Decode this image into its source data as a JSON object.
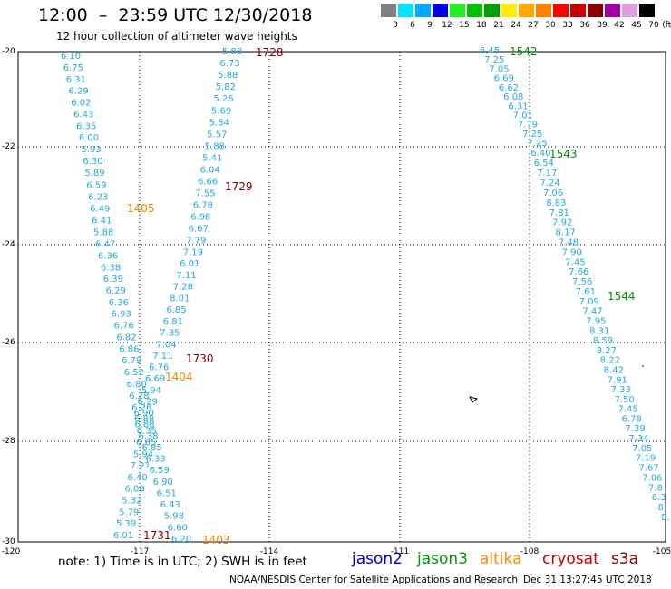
{
  "header": {
    "title": "12:00  –  23:59 UTC 12/30/2018",
    "subtitle": "12 hour collection of altimeter wave heights"
  },
  "scale": {
    "unit": "(ft)",
    "steps": [
      {
        "label": "3",
        "color": "#7f7f7f"
      },
      {
        "label": "6",
        "color": "#00e5ff"
      },
      {
        "label": "9",
        "color": "#00aaff"
      },
      {
        "label": "12",
        "color": "#0000ee"
      },
      {
        "label": "15",
        "color": "#22ee22"
      },
      {
        "label": "18",
        "color": "#00c000"
      },
      {
        "label": "21",
        "color": "#00a000"
      },
      {
        "label": "24",
        "color": "#ffee00"
      },
      {
        "label": "27",
        "color": "#ffa800"
      },
      {
        "label": "30",
        "color": "#ff7f00"
      },
      {
        "label": "33",
        "color": "#ff0000"
      },
      {
        "label": "36",
        "color": "#c80000"
      },
      {
        "label": "39",
        "color": "#8a0000"
      },
      {
        "label": "42",
        "color": "#a000a0"
      },
      {
        "label": "45",
        "color": "#e0a0e0"
      },
      {
        "label": "70",
        "color": "#000000"
      }
    ]
  },
  "axes": {
    "lat_labels": [
      "-20",
      "-22",
      "-24",
      "-26",
      "-28",
      "-30"
    ],
    "lon_labels": [
      "-120",
      "-117",
      "-114",
      "-111",
      "-108",
      "-105"
    ]
  },
  "track_colors": {
    "low": "#22aadd",
    "time_s3a": "#8b0000",
    "time_jason3": "#0a8a0a",
    "time_altika": "#ee8800"
  },
  "tracks": [
    {
      "id": "west",
      "values": [
        "6.10",
        "6.75",
        "6.31",
        "6.29",
        "6.02",
        "6.43",
        "6.35",
        "6.00",
        "5.93",
        "6.30",
        "5.89",
        "6.59",
        "6.23",
        "6.49",
        "6.41",
        "5.88",
        "6.47",
        "6.36",
        "6.38",
        "6.39",
        "6.29",
        "6.36",
        "6.93",
        "6.76",
        "6.82",
        "6.86",
        "6.79",
        "6.52",
        "6.80",
        "6.28",
        "6.26",
        "6.88",
        "6.35",
        "6.65",
        "5.94",
        "7.21",
        "6.40",
        "6.08",
        "5.32",
        "5.79",
        "5.39",
        "6.01"
      ]
    },
    {
      "id": "mid",
      "values": [
        "5.88",
        "6.73",
        "5.88",
        "5.82",
        "5.26",
        "5.69",
        "5.54",
        "5.57",
        "5.88",
        "5.41",
        "6.04",
        "6.66",
        "7.55",
        "6.78",
        "6.98",
        "6.67",
        "7.79",
        "7.19",
        "6.01",
        "7.11",
        "7.28",
        "8.01",
        "6.85",
        "6.81",
        "7.35",
        "7.04",
        "7.11",
        "6.76",
        "6.69",
        "5.94",
        "6.29",
        "6.90",
        "6.88",
        "6.38",
        "6.85",
        "6.33",
        "6.59",
        "6.90",
        "6.51",
        "6.43",
        "5.98",
        "6.60",
        "6.20"
      ]
    },
    {
      "id": "east",
      "values": [
        "6.45",
        "7.25",
        "7.05",
        "6.69",
        "6.62",
        "6.08",
        "6.31",
        "7.01",
        "7.79",
        "7.25",
        "7.25",
        "6.40",
        "6.54",
        "7.17",
        "7.24",
        "7.06",
        "8.83",
        "7.81",
        "7.92",
        "8.17",
        "7.48",
        "7.90",
        "7.45",
        "7.66",
        "7.56",
        "7.61",
        "7.09",
        "7.47",
        "7.95",
        "8.31",
        "8.59",
        "8.27",
        "8.22",
        "8.42",
        "7.91",
        "7.33",
        "7.50",
        "7.45",
        "6.78",
        "7.39",
        "7.34",
        "7.05",
        "7.19",
        "7.67",
        "7.06",
        "7.8",
        "6.3",
        "8.",
        "8."
      ]
    }
  ],
  "time_labels": [
    {
      "text": "1728",
      "sat": "cryosat"
    },
    {
      "text": "1729",
      "sat": "cryosat"
    },
    {
      "text": "1730",
      "sat": "cryosat"
    },
    {
      "text": "1731",
      "sat": "cryosat"
    },
    {
      "text": "1405",
      "sat": "altika"
    },
    {
      "text": "1404",
      "sat": "altika"
    },
    {
      "text": "1403",
      "sat": "altika"
    },
    {
      "text": "1542",
      "sat": "jason3"
    },
    {
      "text": "1543",
      "sat": "jason3"
    },
    {
      "text": "1544",
      "sat": "jason3"
    }
  ],
  "footer": {
    "note": "note: 1) Time is in UTC; 2) SWH is in feet",
    "legend": [
      {
        "name": "jason2",
        "color": "#0000cc"
      },
      {
        "name": "jason3",
        "color": "#009900"
      },
      {
        "name": "altika",
        "color": "#ff8800"
      },
      {
        "name": "cryosat",
        "color": "#cc0000"
      },
      {
        "name": "s3a",
        "color": "#880000"
      }
    ],
    "credit": "NOAA/NESDIS Center for Satellite Applications and Research",
    "timestamp": "Dec 31 13:27:45 UTC 2018"
  }
}
